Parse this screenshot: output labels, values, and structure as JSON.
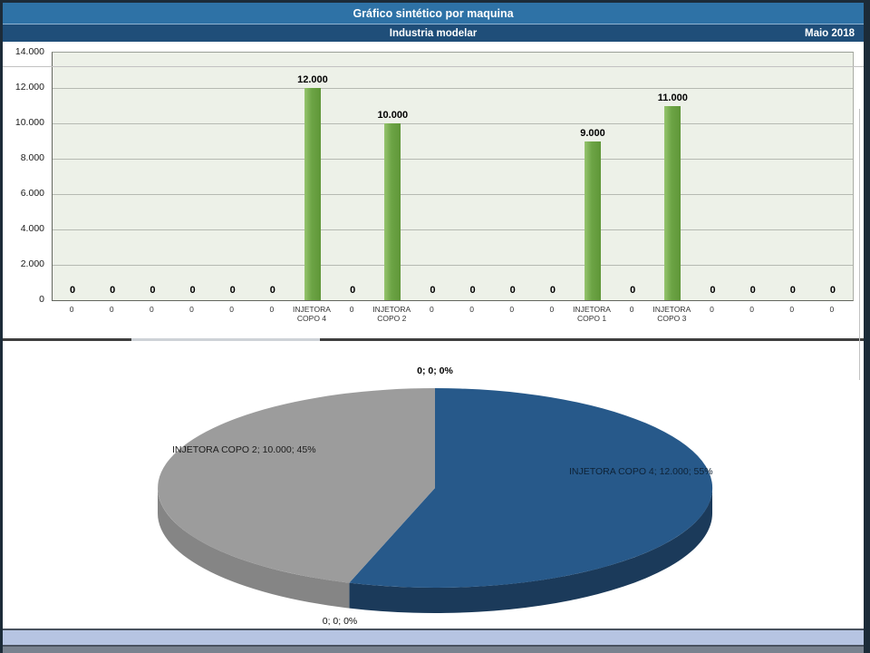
{
  "window": {
    "title": "Gráfico sintético por maquina",
    "subtitle": "Industria modelar",
    "period": "Maio 2018"
  },
  "colors": {
    "title_bar": "#2e72a6",
    "subtitle_bar": "#1f4e79",
    "bar_green": "#6ca445",
    "plot_bg": "#edf1e8",
    "pie_blue": "#27598a",
    "pie_blue_side": "#1b3a5a",
    "pie_gray": "#9c9c9c",
    "pie_gray_side": "#858585",
    "footer_band": "#b6c4e2"
  },
  "chart_data": [
    {
      "type": "bar",
      "title": "",
      "xlabel": "",
      "ylabel": "",
      "ylim": [
        0,
        14000
      ],
      "yticks": [
        "0",
        "2.000",
        "4.000",
        "6.000",
        "8.000",
        "10.000",
        "12.000",
        "14.000"
      ],
      "grid": "on",
      "bar_color": "#6ca445",
      "categories": [
        "0",
        "0",
        "0",
        "0",
        "0",
        "0",
        "INJETORA COPO 4",
        "0",
        "INJETORA COPO 2",
        "0",
        "0",
        "0",
        "0",
        "INJETORA COPO 1",
        "0",
        "INJETORA COPO 3",
        "0",
        "0",
        "0",
        "0"
      ],
      "categories_display": [
        "0",
        "0",
        "0",
        "0",
        "0",
        "0",
        "INJETORA\nCOPO 4",
        "0",
        "INJETORA\nCOPO 2",
        "0",
        "0",
        "0",
        "0",
        "INJETORA\nCOPO 1",
        "0",
        "INJETORA\nCOPO 3",
        "0",
        "0",
        "0",
        "0"
      ],
      "values": [
        0,
        0,
        0,
        0,
        0,
        0,
        12000,
        0,
        10000,
        0,
        0,
        0,
        0,
        9000,
        0,
        11000,
        0,
        0,
        0,
        0
      ],
      "data_labels": [
        "0",
        "0",
        "0",
        "0",
        "0",
        "0",
        "12.000",
        "0",
        "10.000",
        "0",
        "0",
        "0",
        "0",
        "9.000",
        "0",
        "11.000",
        "0",
        "0",
        "0",
        "0"
      ]
    },
    {
      "type": "pie",
      "effect": "3d",
      "direction": "clockwise",
      "start_angle_deg": 0,
      "slices": [
        {
          "name": "INJETORA COPO 4",
          "value": 12000,
          "percent": 55,
          "label": "INJETORA COPO 4; 12.000; 55%",
          "color": "#27598a",
          "side_color": "#1b3a5a"
        },
        {
          "name": "0",
          "value": 0,
          "percent": 0,
          "label": "0; 0; 0%"
        },
        {
          "name": "INJETORA COPO 2",
          "value": 10000,
          "percent": 45,
          "label": "INJETORA COPO 2; 10.000; 45%",
          "color": "#9c9c9c",
          "side_color": "#858585"
        },
        {
          "name": "0",
          "value": 0,
          "percent": 0,
          "label": "0; 0; 0%"
        }
      ]
    }
  ]
}
